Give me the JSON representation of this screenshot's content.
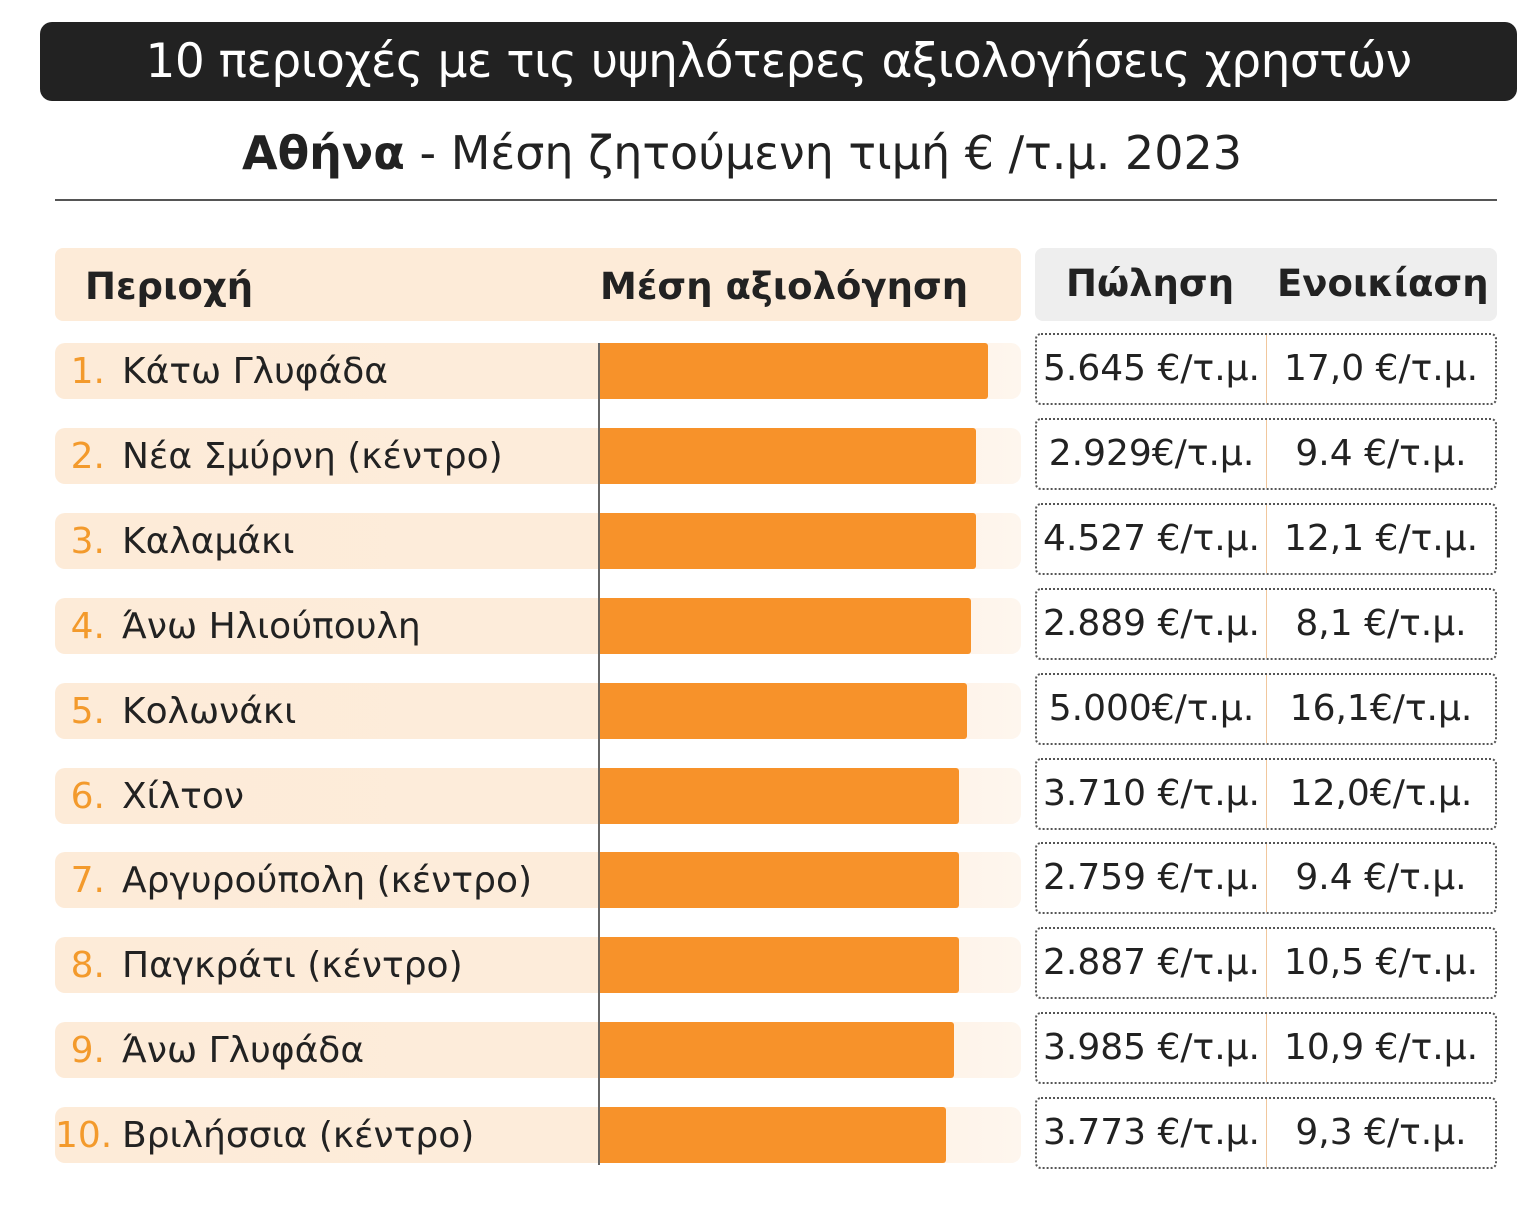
{
  "title": "10 περιοχές με τις υψηλότερες αξιολογήσεις χρηστών",
  "subtitle": {
    "city": "Αθήνα",
    "rest": " - Μέση ζητούμενη τιμή € /τ.μ. 2023"
  },
  "headers": {
    "area": "Περιοχή",
    "rating": "Μέση αξιολόγηση",
    "sale": "Πώληση",
    "rent": "Ενοικίαση"
  },
  "colors": {
    "bar": "#f7922a",
    "rank": "#f39a2c",
    "row_bg": "#fdebd8",
    "title_bg": "#222222"
  },
  "chart_data": {
    "type": "bar",
    "orientation": "horizontal",
    "categories": [
      "Κάτω Γλυφάδα",
      "Νέα Σμύρνη (κέντρο)",
      "Καλαμάκι",
      "Άνω Ηλιούπουλη",
      "Κολωνάκι",
      "Χίλτον",
      "Αργυρούπολη (κέντρο)",
      "Παγκράτι (κέντρο)",
      "Άνω Γλυφάδα",
      "Βριλήσσια (κέντρο)"
    ],
    "values": [
      92,
      89,
      89,
      88,
      87,
      85,
      85,
      85,
      84,
      82
    ],
    "value_scale": "relative fill of bar track (0-100), no axis values shown",
    "xlim": [
      0,
      100
    ],
    "grid": false,
    "legend": "none"
  },
  "rows": [
    {
      "rank": "1.",
      "area": "Κάτω Γλυφάδα",
      "sale": "5.645 €/τ.μ.",
      "rent": "17,0 €/τ.μ."
    },
    {
      "rank": "2.",
      "area": "Νέα Σμύρνη (κέντρο)",
      "sale": "2.929€/τ.μ.",
      "rent": "9.4 €/τ.μ."
    },
    {
      "rank": "3.",
      "area": "Καλαμάκι",
      "sale": "4.527 €/τ.μ.",
      "rent": "12,1 €/τ.μ."
    },
    {
      "rank": "4.",
      "area": "Άνω Ηλιούπουλη",
      "sale": "2.889 €/τ.μ.",
      "rent": "8,1 €/τ.μ."
    },
    {
      "rank": "5.",
      "area": "Κολωνάκι",
      "sale": "5.000€/τ.μ.",
      "rent": "16,1€/τ.μ."
    },
    {
      "rank": "6.",
      "area": "Χίλτον",
      "sale": "3.710 €/τ.μ.",
      "rent": "12,0€/τ.μ."
    },
    {
      "rank": "7.",
      "area": "Αργυρούπολη (κέντρο)",
      "sale": "2.759 €/τ.μ.",
      "rent": "9.4 €/τ.μ."
    },
    {
      "rank": "8.",
      "area": "Παγκράτι (κέντρο)",
      "sale": "2.887 €/τ.μ.",
      "rent": "10,5 €/τ.μ."
    },
    {
      "rank": "9.",
      "area": "Άνω Γλυφάδα",
      "sale": "3.985 €/τ.μ.",
      "rent": "10,9 €/τ.μ."
    },
    {
      "rank": "10.",
      "area": "Βριλήσσια (κέντρο)",
      "sale": "3.773 €/τ.μ.",
      "rent": "9,3 €/τ.μ."
    }
  ]
}
